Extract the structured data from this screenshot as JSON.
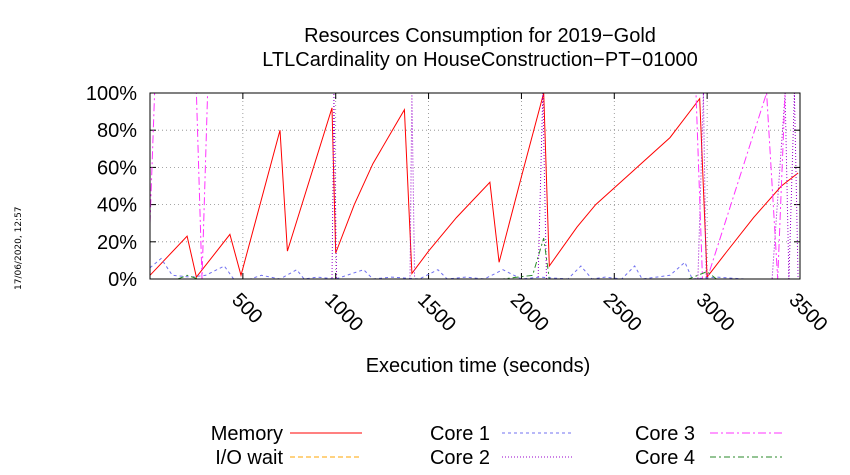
{
  "timestamp": "17/06/2020, 12:57",
  "chart_data": {
    "type": "line",
    "title": "Resources Consumption for 2019−Gold",
    "subtitle": "LTLCardinality on HouseConstruction−PT−01000",
    "xlabel": "Execution time (seconds)",
    "ylabel": "",
    "xlim": [
      0,
      3500
    ],
    "ylim": [
      0,
      100
    ],
    "xticks": [
      500,
      1000,
      1500,
      2000,
      2500,
      3000,
      3500
    ],
    "yticks": [
      0,
      20,
      40,
      60,
      80,
      100
    ],
    "ytick_labels": [
      "0%",
      "20%",
      "40%",
      "60%",
      "80%",
      "100%"
    ],
    "grid": true,
    "legend_position": "bottom",
    "series": [
      {
        "name": "Memory",
        "color": "#ff0000",
        "dash": "",
        "points": [
          [
            0,
            2
          ],
          [
            200,
            23
          ],
          [
            250,
            1
          ],
          [
            430,
            24
          ],
          [
            490,
            2
          ],
          [
            700,
            80
          ],
          [
            740,
            15
          ],
          [
            980,
            92
          ],
          [
            1000,
            14
          ],
          [
            1100,
            40
          ],
          [
            1200,
            62
          ],
          [
            1370,
            91
          ],
          [
            1410,
            3
          ],
          [
            1500,
            15
          ],
          [
            1650,
            33
          ],
          [
            1830,
            52
          ],
          [
            1880,
            9
          ],
          [
            2000,
            55
          ],
          [
            2120,
            100
          ],
          [
            2150,
            7
          ],
          [
            2300,
            28
          ],
          [
            2400,
            40
          ],
          [
            2600,
            58
          ],
          [
            2800,
            76
          ],
          [
            2960,
            97
          ],
          [
            3000,
            1
          ],
          [
            3100,
            14
          ],
          [
            3250,
            33
          ],
          [
            3400,
            50
          ],
          [
            3490,
            57
          ]
        ]
      },
      {
        "name": "I/O wait",
        "color": "#ffa500",
        "dash": "5,3",
        "points": [
          [
            0,
            0
          ],
          [
            3490,
            0
          ]
        ]
      },
      {
        "name": "Core 1",
        "color": "#7070f0",
        "dash": "3,3",
        "points": [
          [
            0,
            6
          ],
          [
            60,
            11
          ],
          [
            120,
            2
          ],
          [
            220,
            1
          ],
          [
            300,
            2
          ],
          [
            400,
            7
          ],
          [
            450,
            0
          ],
          [
            540,
            0
          ],
          [
            600,
            2
          ],
          [
            700,
            0
          ],
          [
            790,
            5
          ],
          [
            830,
            0
          ],
          [
            900,
            1
          ],
          [
            1000,
            0
          ],
          [
            1150,
            5
          ],
          [
            1200,
            0
          ],
          [
            1300,
            1
          ],
          [
            1450,
            0
          ],
          [
            1550,
            5
          ],
          [
            1600,
            0
          ],
          [
            1700,
            1
          ],
          [
            1800,
            0
          ],
          [
            1900,
            5
          ],
          [
            2000,
            0
          ],
          [
            2100,
            1
          ],
          [
            2250,
            0
          ],
          [
            2320,
            7
          ],
          [
            2380,
            0
          ],
          [
            2450,
            1
          ],
          [
            2540,
            0
          ],
          [
            2610,
            7
          ],
          [
            2650,
            0
          ],
          [
            2800,
            2
          ],
          [
            2880,
            9
          ],
          [
            2920,
            0
          ],
          [
            3050,
            1
          ],
          [
            3200,
            0
          ],
          [
            3490,
            0
          ]
        ]
      },
      {
        "name": "Core 2",
        "color": "#9900cc",
        "dash": "1,2",
        "points": [
          [
            0,
            0
          ],
          [
            980,
            0
          ],
          [
            990,
            100
          ],
          [
            1005,
            0
          ],
          [
            1400,
            0
          ],
          [
            1410,
            100
          ],
          [
            1425,
            0
          ],
          [
            2090,
            0
          ],
          [
            2115,
            100
          ],
          [
            2135,
            0
          ],
          [
            2950,
            0
          ],
          [
            2980,
            100
          ],
          [
            2995,
            0
          ],
          [
            3350,
            0
          ],
          [
            3420,
            100
          ],
          [
            3440,
            0
          ],
          [
            3470,
            100
          ],
          [
            3490,
            0
          ]
        ]
      },
      {
        "name": "Core 3",
        "color": "#ff33ff",
        "dash": "8,3,2,3",
        "points": [
          [
            0,
            30
          ],
          [
            25,
            100
          ],
          [
            250,
            100
          ],
          [
            280,
            0
          ],
          [
            310,
            100
          ],
          [
            2940,
            100
          ],
          [
            2975,
            0
          ],
          [
            3000,
            0
          ],
          [
            3320,
            100
          ],
          [
            3380,
            0
          ],
          [
            3420,
            100
          ],
          [
            3490,
            100
          ]
        ]
      },
      {
        "name": "Core 4",
        "color": "#2a8a2a",
        "dash": "6,3,2,3",
        "points": [
          [
            0,
            0
          ],
          [
            150,
            0
          ],
          [
            200,
            2
          ],
          [
            260,
            0
          ],
          [
            1900,
            0
          ],
          [
            2060,
            2
          ],
          [
            2120,
            22
          ],
          [
            2150,
            0
          ],
          [
            2900,
            0
          ],
          [
            3000,
            4
          ],
          [
            3050,
            0
          ],
          [
            3490,
            0
          ]
        ]
      }
    ]
  }
}
